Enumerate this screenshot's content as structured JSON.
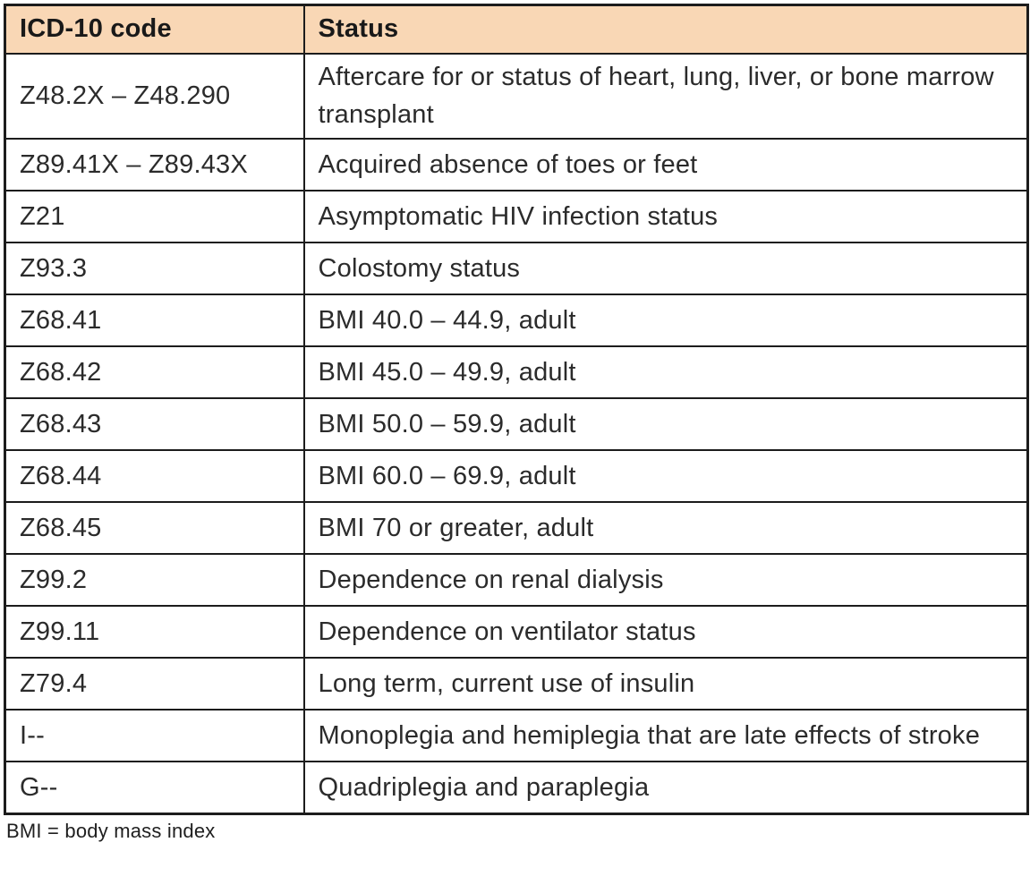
{
  "table": {
    "columns": [
      {
        "label": "ICD-10 code"
      },
      {
        "label": "Status"
      }
    ],
    "rows": [
      {
        "code": "Z48.2X – Z48.290",
        "status": "Aftercare for or status of heart, lung, liver, or bone marrow transplant"
      },
      {
        "code": "Z89.41X – Z89.43X",
        "status": "Acquired absence of toes or feet"
      },
      {
        "code": "Z21",
        "status": "Asymptomatic HIV infection status"
      },
      {
        "code": "Z93.3",
        "status": "Colostomy status"
      },
      {
        "code": "Z68.41",
        "status": "BMI 40.0 – 44.9, adult"
      },
      {
        "code": "Z68.42",
        "status": "BMI 45.0 – 49.9, adult"
      },
      {
        "code": "Z68.43",
        "status": "BMI 50.0 – 59.9, adult"
      },
      {
        "code": "Z68.44",
        "status": "BMI 60.0 – 69.9, adult"
      },
      {
        "code": "Z68.45",
        "status": "BMI 70 or greater, adult"
      },
      {
        "code": "Z99.2",
        "status": "Dependence on renal dialysis"
      },
      {
        "code": "Z99.11",
        "status": "Dependence on ventilator status"
      },
      {
        "code": "Z79.4",
        "status": "Long term, current use of insulin"
      },
      {
        "code": "I--",
        "status": "Monoplegia and hemiplegia that are late effects of stroke"
      },
      {
        "code": "G--",
        "status": "Quadriplegia and paraplegia"
      }
    ],
    "footnote": "BMI = body mass index"
  },
  "colors": {
    "header_bg": "#f9d7b5",
    "border": "#1c1c1c",
    "body_text": "#2b2b2b",
    "header_text": "#191919"
  }
}
